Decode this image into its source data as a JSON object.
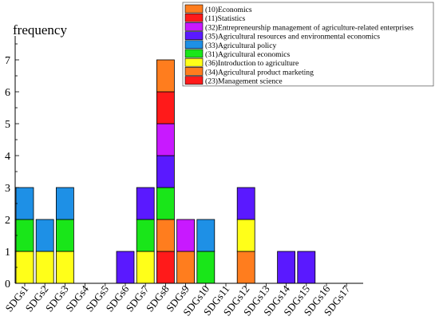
{
  "chart_data": {
    "type": "bar",
    "stacked": true,
    "ylabel": "frequency",
    "ylim": [
      0,
      7.6
    ],
    "yticks": [
      0,
      1,
      2,
      3,
      4,
      5,
      6,
      7
    ],
    "categories": [
      "SDGs1",
      "SDGs2",
      "SDGs3",
      "SDGs4",
      "SDGs5",
      "SDGs6",
      "SDGs7",
      "SDGs8",
      "SDGs9",
      "SDGs10",
      "SDGs11",
      "SDGs12",
      "SDGs13",
      "SDGs14",
      "SDGs15",
      "SDGs16",
      "SDGs17"
    ],
    "series": [
      {
        "name": "(23)Management science",
        "color": "#ff1a1a",
        "values": [
          0,
          0,
          0,
          0,
          0,
          0,
          0,
          1,
          0,
          0,
          0,
          0,
          0,
          0,
          0,
          0,
          0
        ]
      },
      {
        "name": "(34)Agricultural product marketing",
        "color": "#ff7d1e",
        "values": [
          0,
          0,
          0,
          0,
          0,
          0,
          0,
          1,
          1,
          0,
          0,
          1,
          0,
          0,
          0,
          0,
          0
        ]
      },
      {
        "name": "(36)Introduction to agriculture",
        "color": "#ffff19",
        "values": [
          1,
          1,
          1,
          0,
          0,
          0,
          1,
          0,
          0,
          0,
          0,
          1,
          0,
          0,
          0,
          0,
          0
        ]
      },
      {
        "name": "(31)Agricultural economics",
        "color": "#19e619",
        "values": [
          1,
          0,
          1,
          0,
          0,
          0,
          1,
          1,
          0,
          1,
          0,
          0,
          0,
          0,
          0,
          0,
          0
        ]
      },
      {
        "name": "(33)Agricultural policy",
        "color": "#1e90e6",
        "values": [
          1,
          1,
          1,
          0,
          0,
          0,
          0,
          0,
          0,
          1,
          0,
          0,
          0,
          0,
          0,
          0,
          0
        ]
      },
      {
        "name": "(35)Agricultural resources and environmental economics",
        "color": "#5a19ff",
        "values": [
          0,
          0,
          0,
          0,
          0,
          1,
          1,
          1,
          0,
          0,
          0,
          1,
          0,
          1,
          1,
          0,
          0
        ]
      },
      {
        "name": "(32)Entrepreneurship management of agriculture-related enterprises",
        "color": "#c819ff",
        "values": [
          0,
          0,
          0,
          0,
          0,
          0,
          0,
          1,
          1,
          0,
          0,
          0,
          0,
          0,
          0,
          0,
          0
        ]
      },
      {
        "name": "(11)Statistics",
        "color": "#ff1a1a",
        "values": [
          0,
          0,
          0,
          0,
          0,
          0,
          0,
          1,
          0,
          0,
          0,
          0,
          0,
          0,
          0,
          0,
          0
        ]
      },
      {
        "name": "(10)Economics",
        "color": "#ff7d1e",
        "values": [
          0,
          0,
          0,
          0,
          0,
          0,
          0,
          1,
          0,
          0,
          0,
          0,
          0,
          0,
          0,
          0,
          0
        ]
      }
    ],
    "legend_order": [
      "(10)Economics",
      "(11)Statistics",
      "(32)Entrepreneurship management of agriculture-related enterprises",
      "(35)Agricultural resources and environmental economics",
      "(33)Agricultural policy",
      "(31)Agricultural economics",
      "(36)Introduction to agriculture",
      "(34)Agricultural product marketing",
      "(23)Management science"
    ],
    "legend_position": "top-right",
    "grid": false
  }
}
